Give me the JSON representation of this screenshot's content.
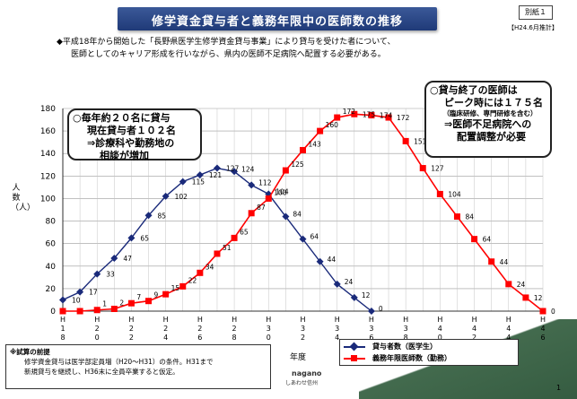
{
  "header": {
    "title": "修学資金貸与者と義務年限中の医師数の推移",
    "doc_label": "別紙１",
    "date_note": "【H24.6月推計】"
  },
  "intro": {
    "line1": "◆平成18年から開始した「長野県医学生修学資金貸与事業」により貸与を受けた者について、",
    "line2": "医師としてのキャリア形成を行いながら、県内の医師不足病院へ配置する必要がある。"
  },
  "callout_left": {
    "line1": "○毎年約２０名に貸与",
    "line2": "現在貸与者１０２名",
    "line3": "⇒診療科や勤務地の",
    "line4": "相談が増加"
  },
  "callout_right": {
    "line1": "○貸与終了の医師は",
    "line2": "ピーク時には１７５名",
    "line3": "（臨床研修、専門研修を含む）",
    "line4": "⇒医師不足病院への",
    "line5": "配置調整が必要"
  },
  "footnote": {
    "title": "※試算の前提",
    "line1": "修学資金貸与は医学部定員増（H20～H31）の条件。H31まで",
    "line2": "新規貸与を継続し、H36末に全員卒業すると仮定。"
  },
  "axis": {
    "ylabel": "人数（人）",
    "xlabel": "年度"
  },
  "branding": {
    "name": "nagano",
    "sub": "しあわせ信州"
  },
  "page_number": "1",
  "colors": {
    "students": "#1a2a7a",
    "doctors": "#ff0000",
    "title_bg": "#2a4a8c"
  },
  "chart_data": {
    "type": "line",
    "x": [
      "H18",
      "H19",
      "H20",
      "H21",
      "H22",
      "H23",
      "H24",
      "H25",
      "H26",
      "H27",
      "H28",
      "H29",
      "H30",
      "H31",
      "H32",
      "H33",
      "H34",
      "H35",
      "H36",
      "H37",
      "H38",
      "H39",
      "H40",
      "H41",
      "H42",
      "H43",
      "H44",
      "H45",
      "H46"
    ],
    "tick_labels": [
      "H18",
      "H20",
      "H22",
      "H24",
      "H26",
      "H28",
      "H30",
      "H32",
      "H34",
      "H36",
      "H38",
      "H40",
      "H42",
      "H44",
      "H46"
    ],
    "ylim": [
      0,
      180
    ],
    "yticks": [
      0,
      20,
      40,
      60,
      80,
      100,
      120,
      140,
      160,
      180
    ],
    "ylabel": "人数（人）",
    "xlabel": "年度",
    "grid": true,
    "series": [
      {
        "name": "貸与者数（医学生）",
        "values": [
          10,
          17,
          33,
          47,
          65,
          85,
          102,
          115,
          121,
          127,
          124,
          112,
          104,
          84,
          64,
          44,
          24,
          12,
          0,
          null,
          null,
          null,
          null,
          null,
          null,
          null,
          null,
          null,
          null
        ],
        "labels": [
          10,
          17,
          33,
          47,
          65,
          85,
          102,
          115,
          121,
          127,
          124,
          112,
          104,
          84,
          64,
          44,
          24,
          12,
          0,
          null,
          null,
          null,
          null,
          null,
          null,
          null,
          null,
          null,
          null
        ]
      },
      {
        "name": "義務年限医師数（勤務）",
        "values": [
          0,
          0,
          1,
          2,
          7,
          9,
          15,
          22,
          34,
          51,
          65,
          87,
          100,
          125,
          143,
          160,
          172,
          175,
          174,
          172,
          151,
          127,
          104,
          84,
          64,
          44,
          24,
          12,
          0
        ],
        "labels": [
          null,
          null,
          1,
          2,
          7,
          9,
          15,
          22,
          34,
          51,
          65,
          87,
          100,
          125,
          143,
          160,
          172,
          175,
          174,
          172,
          151,
          127,
          104,
          84,
          64,
          44,
          24,
          12,
          0
        ]
      }
    ]
  }
}
